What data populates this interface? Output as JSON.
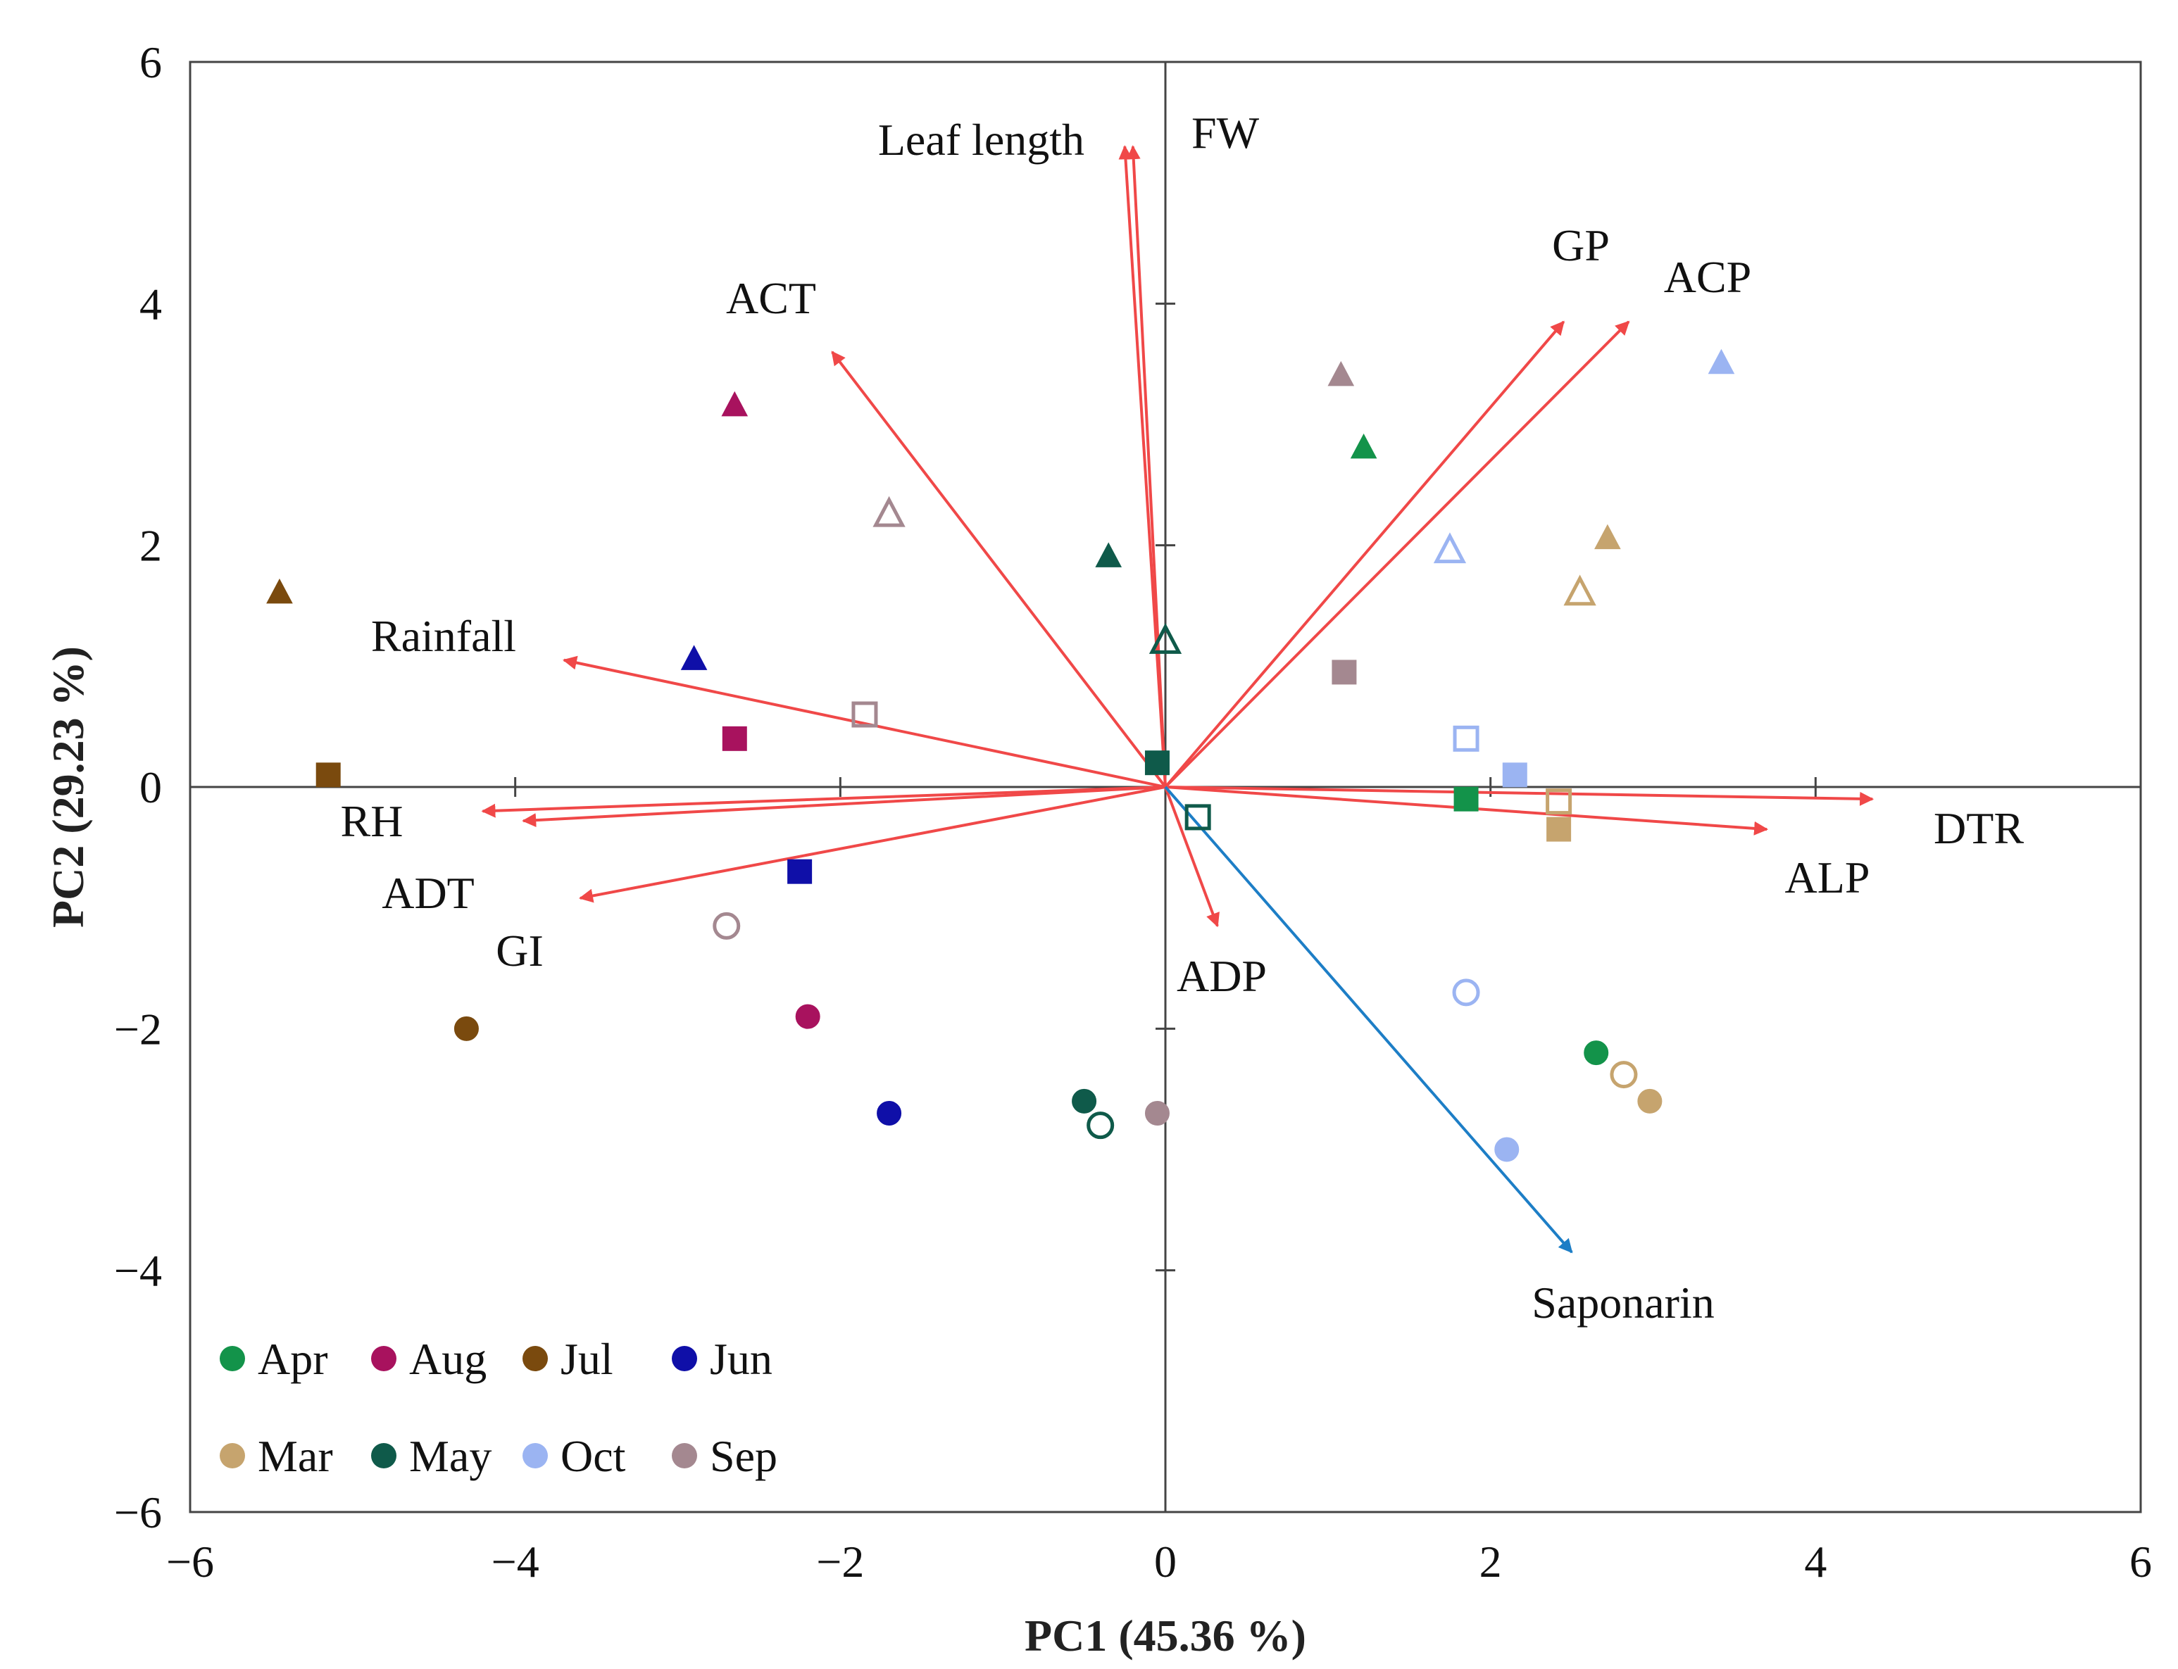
{
  "chart_data": {
    "type": "scatter",
    "subtype": "pca-biplot",
    "xlabel": "PC1 (45.36 %)",
    "ylabel": "PC2 (29.23 %)",
    "xlim": [
      -6,
      6
    ],
    "ylim": [
      -6,
      6
    ],
    "xticks": [
      -6,
      -4,
      -2,
      0,
      2,
      4,
      6
    ],
    "yticks": [
      -6,
      -4,
      -2,
      0,
      2,
      4,
      6
    ],
    "xtick_labels": [
      "−6",
      "−4",
      "−2",
      "0",
      "2",
      "4",
      "6"
    ],
    "ytick_labels": [
      "6",
      "4",
      "2",
      "0",
      "−2",
      "−4",
      "−6"
    ],
    "grid": false,
    "month_colors": {
      "Apr": "#13934a",
      "Aug": "#a8125e",
      "Jul": "#7a4a0e",
      "Jun": "#0f0fa8",
      "Mar": "#c6a46e",
      "May": "#0f5a4a",
      "Oct": "#9bb4f2",
      "Sep": "#a48890"
    },
    "legend": {
      "position": "bottom-left",
      "rows": [
        [
          "Apr",
          "Aug",
          "Jul",
          "Jun"
        ],
        [
          "Mar",
          "May",
          "Oct",
          "Sep"
        ]
      ]
    },
    "vectors": [
      {
        "label": "Leaf length",
        "x": -0.25,
        "y": 5.3,
        "color": "#f04848"
      },
      {
        "label": "FW",
        "x": -0.2,
        "y": 5.3,
        "color": "#f04848"
      },
      {
        "label": "ACT",
        "x": -2.05,
        "y": 3.6,
        "color": "#f04848"
      },
      {
        "label": "GP",
        "x": 2.45,
        "y": 3.85,
        "color": "#f04848"
      },
      {
        "label": "ACP",
        "x": 2.85,
        "y": 3.85,
        "color": "#f04848"
      },
      {
        "label": "Rainfall",
        "x": -3.7,
        "y": 1.05,
        "color": "#f04848"
      },
      {
        "label": "RH",
        "x": -4.2,
        "y": -0.2,
        "color": "#f04848"
      },
      {
        "label": "ADT",
        "x": -3.95,
        "y": -0.28,
        "color": "#f04848"
      },
      {
        "label": "GI",
        "x": -3.6,
        "y": -0.92,
        "color": "#f04848"
      },
      {
        "label": "DTR",
        "x": 4.35,
        "y": -0.1,
        "color": "#f04848"
      },
      {
        "label": "ALP",
        "x": 3.7,
        "y": -0.35,
        "color": "#f04848"
      },
      {
        "label": "ADP",
        "x": 0.32,
        "y": -1.15,
        "color": "#f04848"
      },
      {
        "label": "Saponarin",
        "x": 2.5,
        "y": -3.85,
        "color": "#1d7ec6"
      }
    ],
    "series": [
      {
        "name": "filled triangles",
        "marker": "triangle",
        "filled": true,
        "points": [
          {
            "month": "Aug",
            "x": -2.65,
            "y": 3.15
          },
          {
            "month": "Jul",
            "x": -5.45,
            "y": 1.6
          },
          {
            "month": "Jun",
            "x": -2.9,
            "y": 1.05
          },
          {
            "month": "May",
            "x": -0.35,
            "y": 1.9
          },
          {
            "month": "Sep",
            "x": 1.08,
            "y": 3.4
          },
          {
            "month": "Apr",
            "x": 1.22,
            "y": 2.8
          },
          {
            "month": "Oct",
            "x": 3.42,
            "y": 3.5
          },
          {
            "month": "Mar",
            "x": 2.72,
            "y": 2.05
          }
        ]
      },
      {
        "name": "open triangles",
        "marker": "triangle",
        "filled": false,
        "points": [
          {
            "month": "Sep",
            "x": -1.7,
            "y": 2.25
          },
          {
            "month": "May",
            "x": 0.0,
            "y": 1.2
          },
          {
            "month": "Oct",
            "x": 1.75,
            "y": 1.95
          },
          {
            "month": "Mar",
            "x": 2.55,
            "y": 1.6
          }
        ]
      },
      {
        "name": "filled squares",
        "marker": "square",
        "filled": true,
        "points": [
          {
            "month": "Jul",
            "x": -5.15,
            "y": 0.1
          },
          {
            "month": "Aug",
            "x": -2.65,
            "y": 0.4
          },
          {
            "month": "Jun",
            "x": -2.25,
            "y": -0.7
          },
          {
            "month": "May",
            "x": -0.05,
            "y": 0.2
          },
          {
            "month": "Sep",
            "x": 1.1,
            "y": 0.95
          },
          {
            "month": "Apr",
            "x": 1.85,
            "y": -0.1
          },
          {
            "month": "Oct",
            "x": 2.15,
            "y": 0.1
          },
          {
            "month": "Mar",
            "x": 2.42,
            "y": -0.35
          }
        ]
      },
      {
        "name": "open squares",
        "marker": "square",
        "filled": false,
        "points": [
          {
            "month": "Sep",
            "x": -1.85,
            "y": 0.6
          },
          {
            "month": "May",
            "x": 0.2,
            "y": -0.25
          },
          {
            "month": "Oct",
            "x": 1.85,
            "y": 0.4
          },
          {
            "month": "Mar",
            "x": 2.42,
            "y": -0.12
          }
        ]
      },
      {
        "name": "filled circles",
        "marker": "circle",
        "filled": true,
        "points": [
          {
            "month": "Jul",
            "x": -4.3,
            "y": -2.0
          },
          {
            "month": "Aug",
            "x": -2.2,
            "y": -1.9
          },
          {
            "month": "Jun",
            "x": -1.7,
            "y": -2.7
          },
          {
            "month": "May",
            "x": -0.5,
            "y": -2.6
          },
          {
            "month": "Sep",
            "x": -0.05,
            "y": -2.7
          },
          {
            "month": "Oct",
            "x": 2.1,
            "y": -3.0
          },
          {
            "month": "Apr",
            "x": 2.65,
            "y": -2.2
          },
          {
            "month": "Mar",
            "x": 2.98,
            "y": -2.6
          }
        ]
      },
      {
        "name": "open circles",
        "marker": "circle",
        "filled": false,
        "points": [
          {
            "month": "Sep",
            "x": -2.7,
            "y": -1.15
          },
          {
            "month": "May",
            "x": -0.4,
            "y": -2.8
          },
          {
            "month": "Oct",
            "x": 1.85,
            "y": -1.7
          },
          {
            "month": "Mar",
            "x": 2.82,
            "y": -2.38
          }
        ]
      }
    ]
  }
}
